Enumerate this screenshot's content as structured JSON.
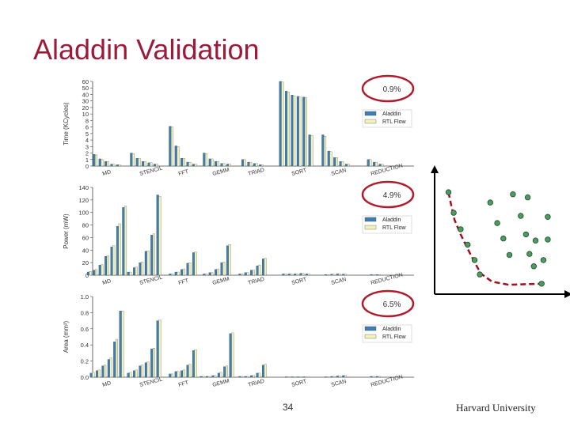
{
  "slide": {
    "title": "Aladdin Validation",
    "page_number": "34",
    "organization": "Harvard University"
  },
  "colors": {
    "title": "#9b1b3a",
    "aladdin": "#3c7fb1",
    "rtl": "#f3f0b8",
    "callout": "#b01c2e",
    "pareto_point": "#4e9a63",
    "pareto_line": "#a0101e"
  },
  "legend": {
    "aladdin": "Aladdin",
    "rtl": "RTL Flow"
  },
  "chart_data": [
    {
      "type": "bar",
      "ylabel": "Time (KCycles)",
      "yticks": [
        0,
        1,
        2,
        3,
        4,
        5,
        6,
        8,
        10,
        20,
        30,
        40,
        50,
        60
      ],
      "ylim": [
        0,
        60
      ],
      "callout": "0.9%",
      "categories": [
        "MD",
        "STENCIL",
        "FFT",
        "GEMM",
        "TRIAD",
        "SORT",
        "SCAN",
        "REDUCTION"
      ],
      "series": [
        {
          "name": "Aladdin",
          "groups": [
            [
              1.8,
              1.1,
              0.7,
              0.3,
              0.2
            ],
            [
              2.0,
              1.2,
              0.7,
              0.5,
              0.3
            ],
            [
              6.2,
              3.1,
              1.2,
              0.6,
              0.3
            ],
            [
              2.0,
              1.1,
              0.7,
              0.4,
              0.3
            ],
            [
              1.0,
              0.6,
              0.4,
              0.2
            ],
            [
              61.0,
              45.0,
              39.0,
              37.0,
              36.0,
              4.8
            ],
            [
              4.8,
              2.3,
              1.3,
              0.7,
              0.3
            ],
            [
              1.0,
              0.6,
              0.3
            ]
          ]
        },
        {
          "name": "RTL Flow",
          "groups": [
            [
              1.7,
              1.0,
              0.7,
              0.3,
              0.2
            ],
            [
              1.9,
              1.2,
              0.7,
              0.5,
              0.3
            ],
            [
              6.0,
              3.0,
              1.2,
              0.6,
              0.3
            ],
            [
              1.9,
              1.1,
              0.7,
              0.4,
              0.3
            ],
            [
              1.0,
              0.6,
              0.4,
              0.2
            ],
            [
              59.0,
              44.0,
              38.0,
              36.0,
              35.0,
              4.7
            ],
            [
              4.6,
              2.2,
              1.3,
              0.7,
              0.3
            ],
            [
              1.0,
              0.6,
              0.3
            ]
          ]
        }
      ]
    },
    {
      "type": "bar",
      "ylabel": "Power (mW)",
      "yticks": [
        0,
        20,
        40,
        60,
        80,
        100,
        120,
        140
      ],
      "ylim": [
        0,
        140
      ],
      "callout": "4.9%",
      "categories": [
        "MD",
        "STENCIL",
        "FFT",
        "GEMM",
        "TRIAD",
        "SORT",
        "SCAN",
        "REDUCTION"
      ],
      "series": [
        {
          "name": "Aladdin",
          "groups": [
            [
              5,
              8,
              16,
              30,
              45,
              78,
              108
            ],
            [
              5,
              12,
              20,
              38,
              64,
              128
            ],
            [
              2,
              5,
              9,
              19,
              36
            ],
            [
              2,
              4,
              9,
              20,
              47
            ],
            [
              2,
              4,
              8,
              15,
              26
            ],
            [
              2,
              2,
              2,
              3,
              2
            ],
            [
              1,
              1.5,
              2,
              1.5
            ],
            [
              1,
              1
            ]
          ]
        },
        {
          "name": "RTL Flow",
          "groups": [
            [
              6,
              9,
              17,
              31,
              47,
              82,
              110
            ],
            [
              5,
              13,
              21,
              39,
              66,
              126
            ],
            [
              2,
              5,
              10,
              20,
              37
            ],
            [
              2,
              4,
              10,
              21,
              49
            ],
            [
              2,
              4,
              8,
              16,
              27
            ],
            [
              2,
              2,
              2,
              3,
              2
            ],
            [
              1,
              1.5,
              2,
              1.5
            ],
            [
              1,
              1
            ]
          ]
        }
      ]
    },
    {
      "type": "bar",
      "ylabel": "Area (mm²)",
      "yticks": [
        0.0,
        0.2,
        0.4,
        0.6,
        0.8,
        1.0
      ],
      "ylim": [
        0,
        1.0
      ],
      "callout": "6.5%",
      "categories": [
        "MD",
        "STENCIL",
        "FFT",
        "GEMM",
        "TRIAD",
        "SORT",
        "SCAN",
        "REDUCTION"
      ],
      "series": [
        {
          "name": "Aladdin",
          "groups": [
            [
              0.05,
              0.08,
              0.14,
              0.22,
              0.44,
              0.82
            ],
            [
              0.05,
              0.08,
              0.14,
              0.18,
              0.35,
              0.7
            ],
            [
              0.04,
              0.07,
              0.08,
              0.15,
              0.33
            ],
            [
              0.01,
              0.01,
              0.02,
              0.05,
              0.13,
              0.54
            ],
            [
              0.01,
              0.01,
              0.02,
              0.05,
              0.15
            ],
            [
              0.005,
              0.005,
              0.005,
              0.005
            ],
            [
              0.005,
              0.01,
              0.015,
              0.02
            ],
            [
              0.01,
              0.01
            ]
          ]
        },
        {
          "name": "RTL Flow",
          "groups": [
            [
              0.06,
              0.09,
              0.15,
              0.24,
              0.47,
              0.82
            ],
            [
              0.06,
              0.09,
              0.15,
              0.19,
              0.36,
              0.71
            ],
            [
              0.04,
              0.07,
              0.09,
              0.16,
              0.34
            ],
            [
              0.01,
              0.01,
              0.02,
              0.06,
              0.14,
              0.55
            ],
            [
              0.01,
              0.01,
              0.02,
              0.05,
              0.16
            ],
            [
              0.005,
              0.005,
              0.005,
              0.005
            ],
            [
              0.005,
              0.01,
              0.015,
              0.02
            ],
            [
              0.01,
              0.01
            ]
          ]
        }
      ]
    },
    {
      "type": "scatter",
      "points": [
        [
          0.05,
          0.93
        ],
        [
          0.11,
          0.73
        ],
        [
          0.19,
          0.57
        ],
        [
          0.27,
          0.42
        ],
        [
          0.35,
          0.27
        ],
        [
          0.41,
          0.13
        ],
        [
          0.53,
          0.83
        ],
        [
          0.61,
          0.63
        ],
        [
          0.68,
          0.48
        ],
        [
          0.75,
          0.32
        ],
        [
          0.88,
          0.7
        ],
        [
          0.94,
          0.52
        ],
        [
          0.98,
          0.33
        ],
        [
          1.03,
          0.21
        ],
        [
          1.12,
          0.04
        ],
        [
          0.79,
          0.91
        ],
        [
          0.96,
          0.88
        ],
        [
          1.05,
          0.46
        ],
        [
          1.14,
          0.27
        ],
        [
          1.19,
          0.47
        ],
        [
          1.19,
          0.69
        ]
      ],
      "frontier": [
        [
          0.05,
          0.93
        ],
        [
          0.08,
          0.81
        ],
        [
          0.12,
          0.66
        ],
        [
          0.19,
          0.52
        ],
        [
          0.27,
          0.38
        ],
        [
          0.35,
          0.25
        ],
        [
          0.42,
          0.14
        ],
        [
          0.55,
          0.06
        ],
        [
          0.74,
          0.03
        ],
        [
          1.12,
          0.04
        ]
      ]
    }
  ]
}
